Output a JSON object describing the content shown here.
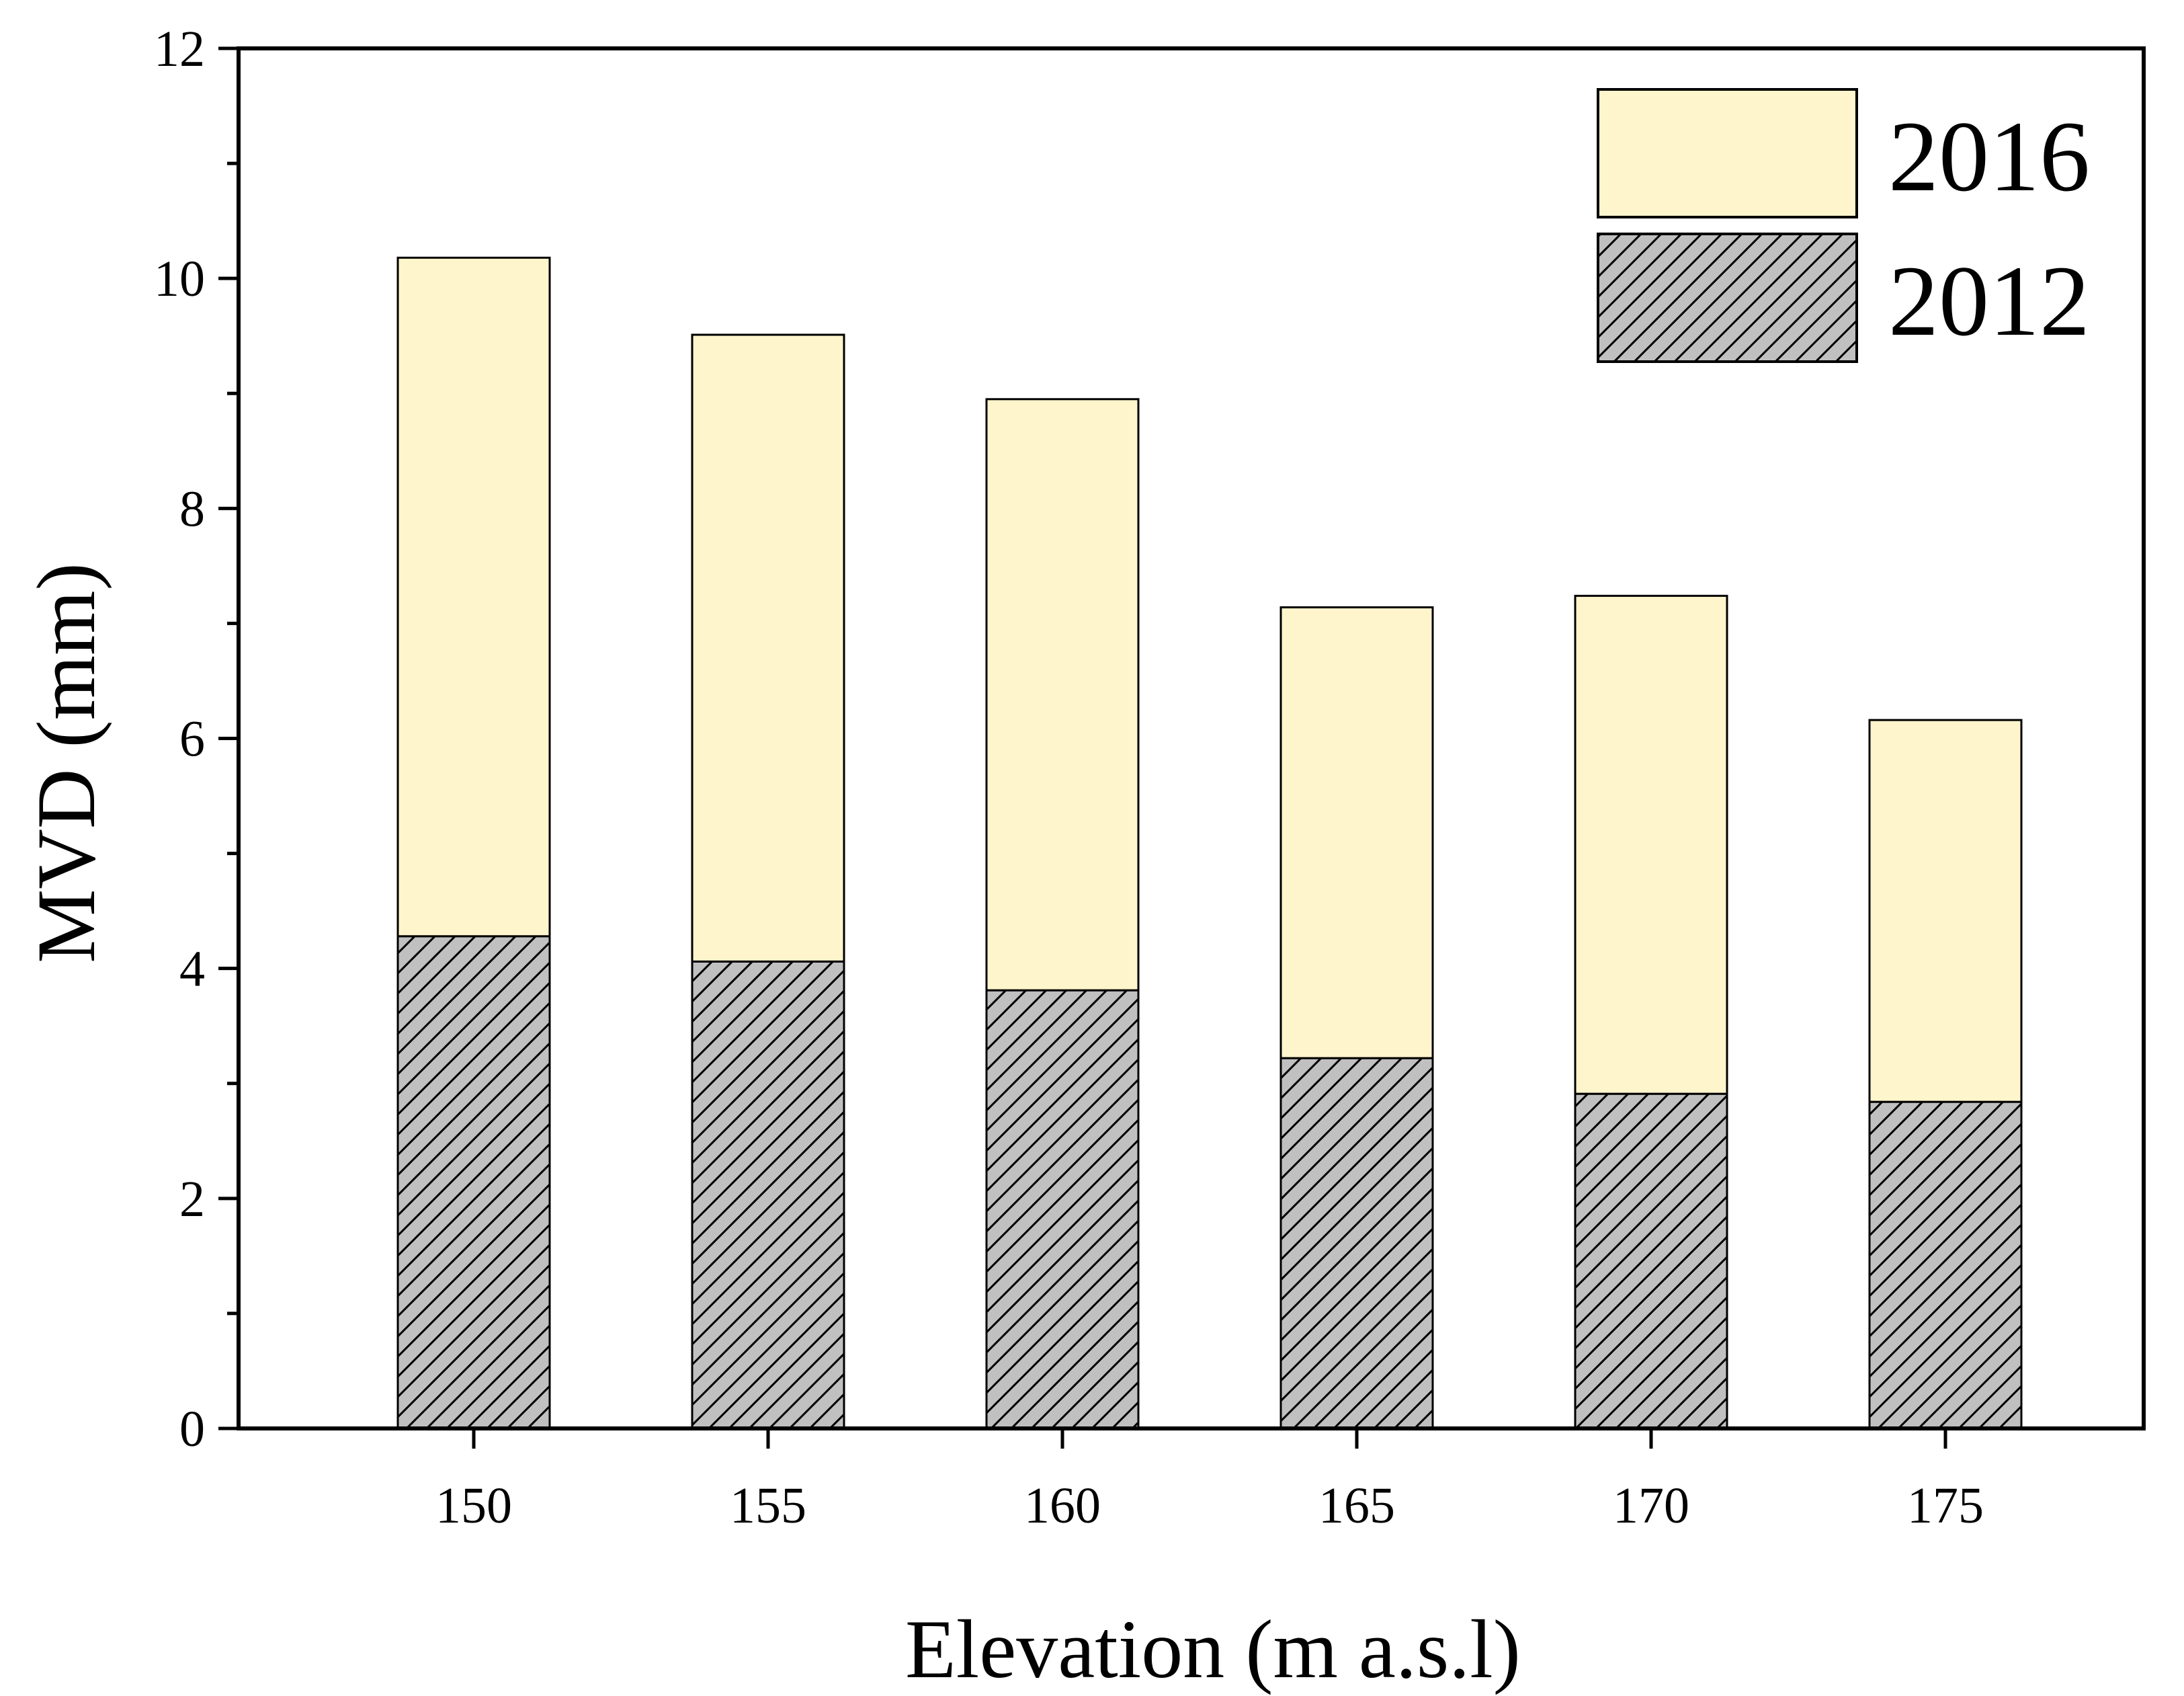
{
  "chart_data": {
    "type": "bar",
    "stacked": true,
    "categories": [
      "150",
      "155",
      "160",
      "165",
      "170",
      "175"
    ],
    "series": [
      {
        "name": "2012",
        "values": [
          4.28,
          4.06,
          3.81,
          3.22,
          2.91,
          2.84
        ],
        "color": "#c0c0c0",
        "pattern": "diagonal-hatch"
      },
      {
        "name": "2016",
        "values": [
          5.9,
          5.45,
          5.14,
          3.92,
          4.33,
          3.32
        ],
        "color": "#fff5cc",
        "pattern": "none"
      }
    ],
    "title": "",
    "xlabel": "Elevation (m a.s.l)",
    "ylabel": "MVD (mm)",
    "ylim": [
      0,
      12
    ],
    "yticks": [
      "0",
      "2",
      "4",
      "6",
      "8",
      "10",
      "12"
    ],
    "legend": {
      "position": "top-right",
      "entries": [
        "2016",
        "2012"
      ]
    },
    "grid": false
  }
}
